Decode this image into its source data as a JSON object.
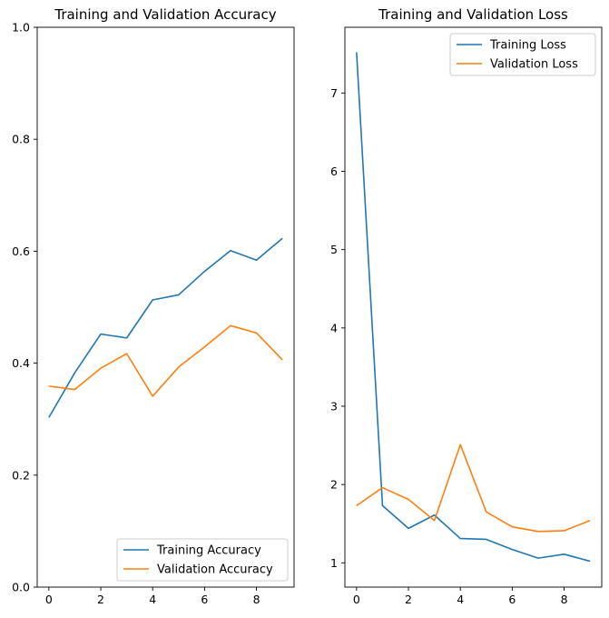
{
  "chart_data": [
    {
      "type": "line",
      "title": "Training and Validation Accuracy",
      "xlabel": "",
      "ylabel": "",
      "xlim": [
        -0.45,
        9.45
      ],
      "ylim": [
        0,
        1.0
      ],
      "xticks": [
        0,
        2,
        4,
        6,
        8
      ],
      "xtick_labels": [
        "0",
        "2",
        "4",
        "6",
        "8"
      ],
      "yticks": [
        0.0,
        0.2,
        0.4,
        0.6,
        0.8,
        1.0
      ],
      "ytick_labels": [
        "0.0",
        "0.2",
        "0.4",
        "0.6",
        "0.8",
        "1.0"
      ],
      "legend_position": "lower right",
      "x": [
        0,
        1,
        2,
        3,
        4,
        5,
        6,
        7,
        8,
        9
      ],
      "series": [
        {
          "name": "Training Accuracy",
          "color": "#1f77b4",
          "values": [
            0.303,
            0.383,
            0.452,
            0.445,
            0.513,
            0.522,
            0.564,
            0.601,
            0.584,
            0.623
          ]
        },
        {
          "name": "Validation Accuracy",
          "color": "#ff7f0e",
          "values": [
            0.359,
            0.353,
            0.391,
            0.417,
            0.341,
            0.393,
            0.429,
            0.467,
            0.454,
            0.406
          ]
        }
      ]
    },
    {
      "type": "line",
      "title": "Training and Validation Loss",
      "xlabel": "",
      "ylabel": "",
      "xlim": [
        -0.45,
        9.45
      ],
      "ylim": [
        0.69,
        7.84
      ],
      "xticks": [
        0,
        2,
        4,
        6,
        8
      ],
      "xtick_labels": [
        "0",
        "2",
        "4",
        "6",
        "8"
      ],
      "yticks": [
        1,
        2,
        3,
        4,
        5,
        6,
        7
      ],
      "ytick_labels": [
        "1",
        "2",
        "3",
        "4",
        "5",
        "6",
        "7"
      ],
      "legend_position": "upper right",
      "x": [
        0,
        1,
        2,
        3,
        4,
        5,
        6,
        7,
        8,
        9
      ],
      "series": [
        {
          "name": "Training Loss",
          "color": "#1f77b4",
          "values": [
            7.52,
            1.73,
            1.44,
            1.61,
            1.31,
            1.3,
            1.17,
            1.06,
            1.11,
            1.02
          ]
        },
        {
          "name": "Validation Loss",
          "color": "#ff7f0e",
          "values": [
            1.73,
            1.96,
            1.81,
            1.54,
            2.51,
            1.65,
            1.46,
            1.4,
            1.41,
            1.54
          ]
        }
      ]
    }
  ]
}
